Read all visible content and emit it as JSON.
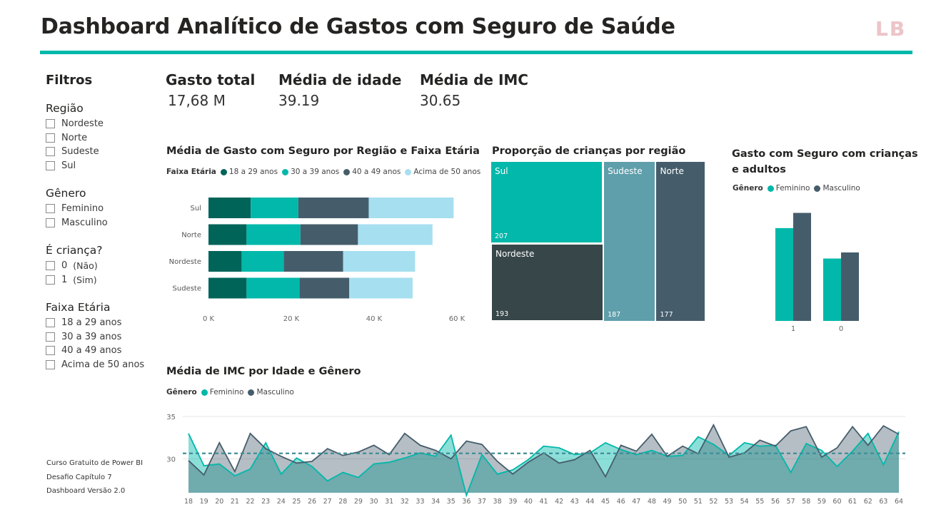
{
  "header": {
    "title": "Dashboard Analítico de Gastos com Seguro de Saúde",
    "logo": "LB",
    "accent_color": "#01b8aa"
  },
  "filters": {
    "title": "Filtros",
    "groups": [
      {
        "title": "Região",
        "items": [
          {
            "label": "Nordeste"
          },
          {
            "label": "Norte"
          },
          {
            "label": "Sudeste"
          },
          {
            "label": "Sul"
          }
        ]
      },
      {
        "title": "Gênero",
        "items": [
          {
            "label": "Feminino"
          },
          {
            "label": "Masculino"
          }
        ]
      },
      {
        "title": "É criança?",
        "items": [
          {
            "label": "0",
            "sub": "(Não)"
          },
          {
            "label": "1",
            "sub": "(Sim)"
          }
        ]
      },
      {
        "title": "Faixa Etária",
        "items": [
          {
            "label": "18 a 29 anos"
          },
          {
            "label": "30 a 39 anos"
          },
          {
            "label": "40 a 49 anos"
          },
          {
            "label": "Acima de 50 anos"
          }
        ]
      }
    ]
  },
  "credits": [
    "Curso Gratuito de Power BI",
    "Desafio Capítulo 7",
    "Dashboard Versão 2.0"
  ],
  "kpis": {
    "gasto_total": {
      "label": "Gasto total",
      "value": "17,68 M"
    },
    "media_idade": {
      "label": "Média de idade",
      "value": "39.19"
    },
    "media_imc": {
      "label": "Média de IMC",
      "value": "30.65"
    }
  },
  "chart_data": [
    {
      "type": "bar",
      "orientation": "horizontal-stacked",
      "title": "Média de Gasto com Seguro por Região e Faixa Etária",
      "legend_title": "Faixa Etária",
      "legend_position": "top-left",
      "categories": [
        "Sul",
        "Norte",
        "Nordeste",
        "Sudeste"
      ],
      "series": [
        {
          "name": "18 a 29 anos",
          "color": "#006459",
          "values": [
            10200,
            9200,
            8000,
            9200
          ]
        },
        {
          "name": "30 a 39 anos",
          "color": "#01b8aa",
          "values": [
            11500,
            13000,
            10200,
            12800
          ]
        },
        {
          "name": "40 a 49 anos",
          "color": "#455d6b",
          "values": [
            17000,
            13900,
            14300,
            12000
          ]
        },
        {
          "name": "Acima de 50 anos",
          "color": "#a6dff0",
          "values": [
            20500,
            18000,
            17400,
            15300
          ]
        }
      ],
      "xlim": [
        0,
        60000
      ],
      "xticks": [
        "0 K",
        "20 K",
        "40 K",
        "60 K"
      ],
      "grid": false
    },
    {
      "type": "treemap",
      "title": "Proporção de crianças por região",
      "items": [
        {
          "label": "Sul",
          "value": 207,
          "color": "#01b8aa"
        },
        {
          "label": "Nordeste",
          "value": 193,
          "color": "#374649"
        },
        {
          "label": "Sudeste",
          "value": 187,
          "color": "#5f9eab"
        },
        {
          "label": "Norte",
          "value": 177,
          "color": "#455d6b"
        }
      ]
    },
    {
      "type": "bar",
      "orientation": "vertical-clustered",
      "title_lines": [
        "Gasto com Seguro com crianças",
        "e adultos"
      ],
      "legend_title": "Gênero",
      "legend_position": "top-left",
      "categories": [
        "1",
        "0"
      ],
      "series": [
        {
          "name": "Feminino",
          "color": "#01b8aa",
          "values": [
            12200,
            8200
          ]
        },
        {
          "name": "Masculino",
          "color": "#455d6b",
          "values": [
            14200,
            9000
          ]
        }
      ],
      "ylim": [
        0,
        15000
      ]
    },
    {
      "type": "area",
      "title": "Média de IMC por Idade e Gênero",
      "legend_title": "Gênero",
      "legend_position": "top-left",
      "x": [
        18,
        19,
        20,
        21,
        22,
        23,
        24,
        25,
        26,
        27,
        28,
        29,
        30,
        31,
        32,
        33,
        34,
        35,
        36,
        37,
        38,
        39,
        40,
        41,
        42,
        43,
        44,
        45,
        46,
        47,
        48,
        49,
        50,
        51,
        52,
        53,
        54,
        55,
        56,
        57,
        58,
        59,
        60,
        61,
        62,
        63,
        64
      ],
      "series": [
        {
          "name": "Feminino",
          "color": "#01b8aa",
          "values": [
            33.0,
            29.2,
            29.4,
            28.0,
            28.8,
            31.9,
            28.2,
            30.1,
            29.1,
            27.4,
            28.4,
            27.8,
            29.4,
            29.6,
            30.1,
            30.7,
            30.3,
            32.8,
            25.7,
            30.5,
            28.2,
            28.7,
            29.9,
            31.5,
            31.3,
            30.5,
            30.7,
            31.9,
            31.1,
            30.5,
            31.0,
            30.3,
            30.4,
            32.6,
            31.7,
            30.4,
            31.9,
            31.5,
            31.6,
            28.4,
            31.8,
            31.0,
            29.1,
            30.9,
            33.0,
            29.3,
            33.2
          ]
        },
        {
          "name": "Masculino",
          "color": "#455d6b",
          "values": [
            29.8,
            28.1,
            31.9,
            28.5,
            33.0,
            31.2,
            30.3,
            29.5,
            29.7,
            31.2,
            30.4,
            30.8,
            31.6,
            30.5,
            33.0,
            31.6,
            31.0,
            30.0,
            32.1,
            31.7,
            29.7,
            28.2,
            29.6,
            30.7,
            29.5,
            29.9,
            31.0,
            27.9,
            31.6,
            30.9,
            32.9,
            30.3,
            31.5,
            30.6,
            34.0,
            30.2,
            30.7,
            32.2,
            31.5,
            33.3,
            33.8,
            30.2,
            31.3,
            33.8,
            31.6,
            33.9,
            32.9
          ]
        }
      ],
      "yticks": [
        30,
        35
      ],
      "ylim": [
        26,
        35
      ],
      "reference_line": 30.65
    }
  ]
}
